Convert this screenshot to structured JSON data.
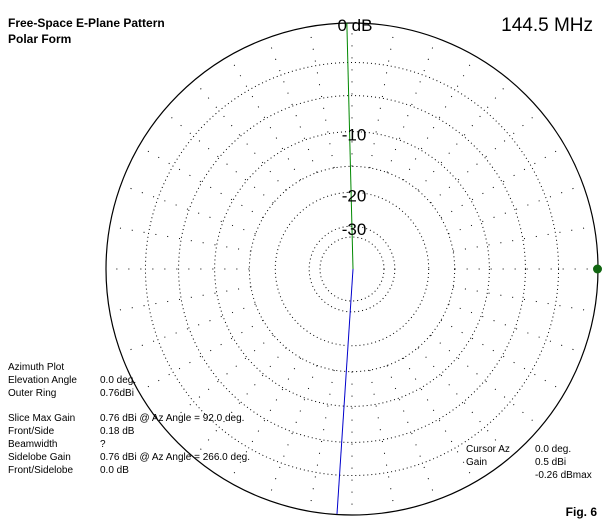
{
  "title": "Free-Space E-Plane Pattern",
  "subtitle": "Polar Form",
  "frequency": "144.5 MHz",
  "figure_label": "Fig. 6",
  "left_info": {
    "heading": "Azimuth Plot",
    "rows_top": [
      {
        "label": "Elevation Angle",
        "value": "0.0 deg."
      },
      {
        "label": "Outer Ring",
        "value": "0.76dBi"
      }
    ],
    "rows_bottom": [
      {
        "label": "Slice Max Gain",
        "value": "0.76 dBi @ Az Angle = 92.0 deg."
      },
      {
        "label": "Front/Side",
        "value": "0.18 dB"
      },
      {
        "label": "Beamwidth",
        "value": "?"
      },
      {
        "label": "Sidelobe Gain",
        "value": "0.76 dBi @ Az Angle = 266.0 deg."
      },
      {
        "label": "Front/Sidelobe",
        "value": "0.0 dB"
      }
    ]
  },
  "cursor_info": {
    "rows": [
      {
        "label": "Cursor Az",
        "value": "0.0 deg."
      },
      {
        "label": "Gain",
        "value": "0.5 dBi"
      },
      {
        "label": "",
        "value": "-0.26 dBmax"
      }
    ]
  },
  "chart_data": {
    "type": "polar",
    "ring_labels": [
      "0 dB",
      "-10",
      "-20",
      "-30"
    ],
    "ring_db": [
      0,
      -10,
      -20,
      -30
    ],
    "extra_rings_db": [
      -3,
      -6,
      -15,
      -35
    ],
    "radial_spoke_step_deg": 10,
    "grid": true,
    "cursor_azimuth_deg": 0,
    "pattern_trace": {
      "color": "#0000cc",
      "note": "near-null pattern, thin line"
    },
    "cursor_line_color": "#008800",
    "max_gain_marker": {
      "azimuth_deg": 92,
      "color": "#116611"
    }
  }
}
